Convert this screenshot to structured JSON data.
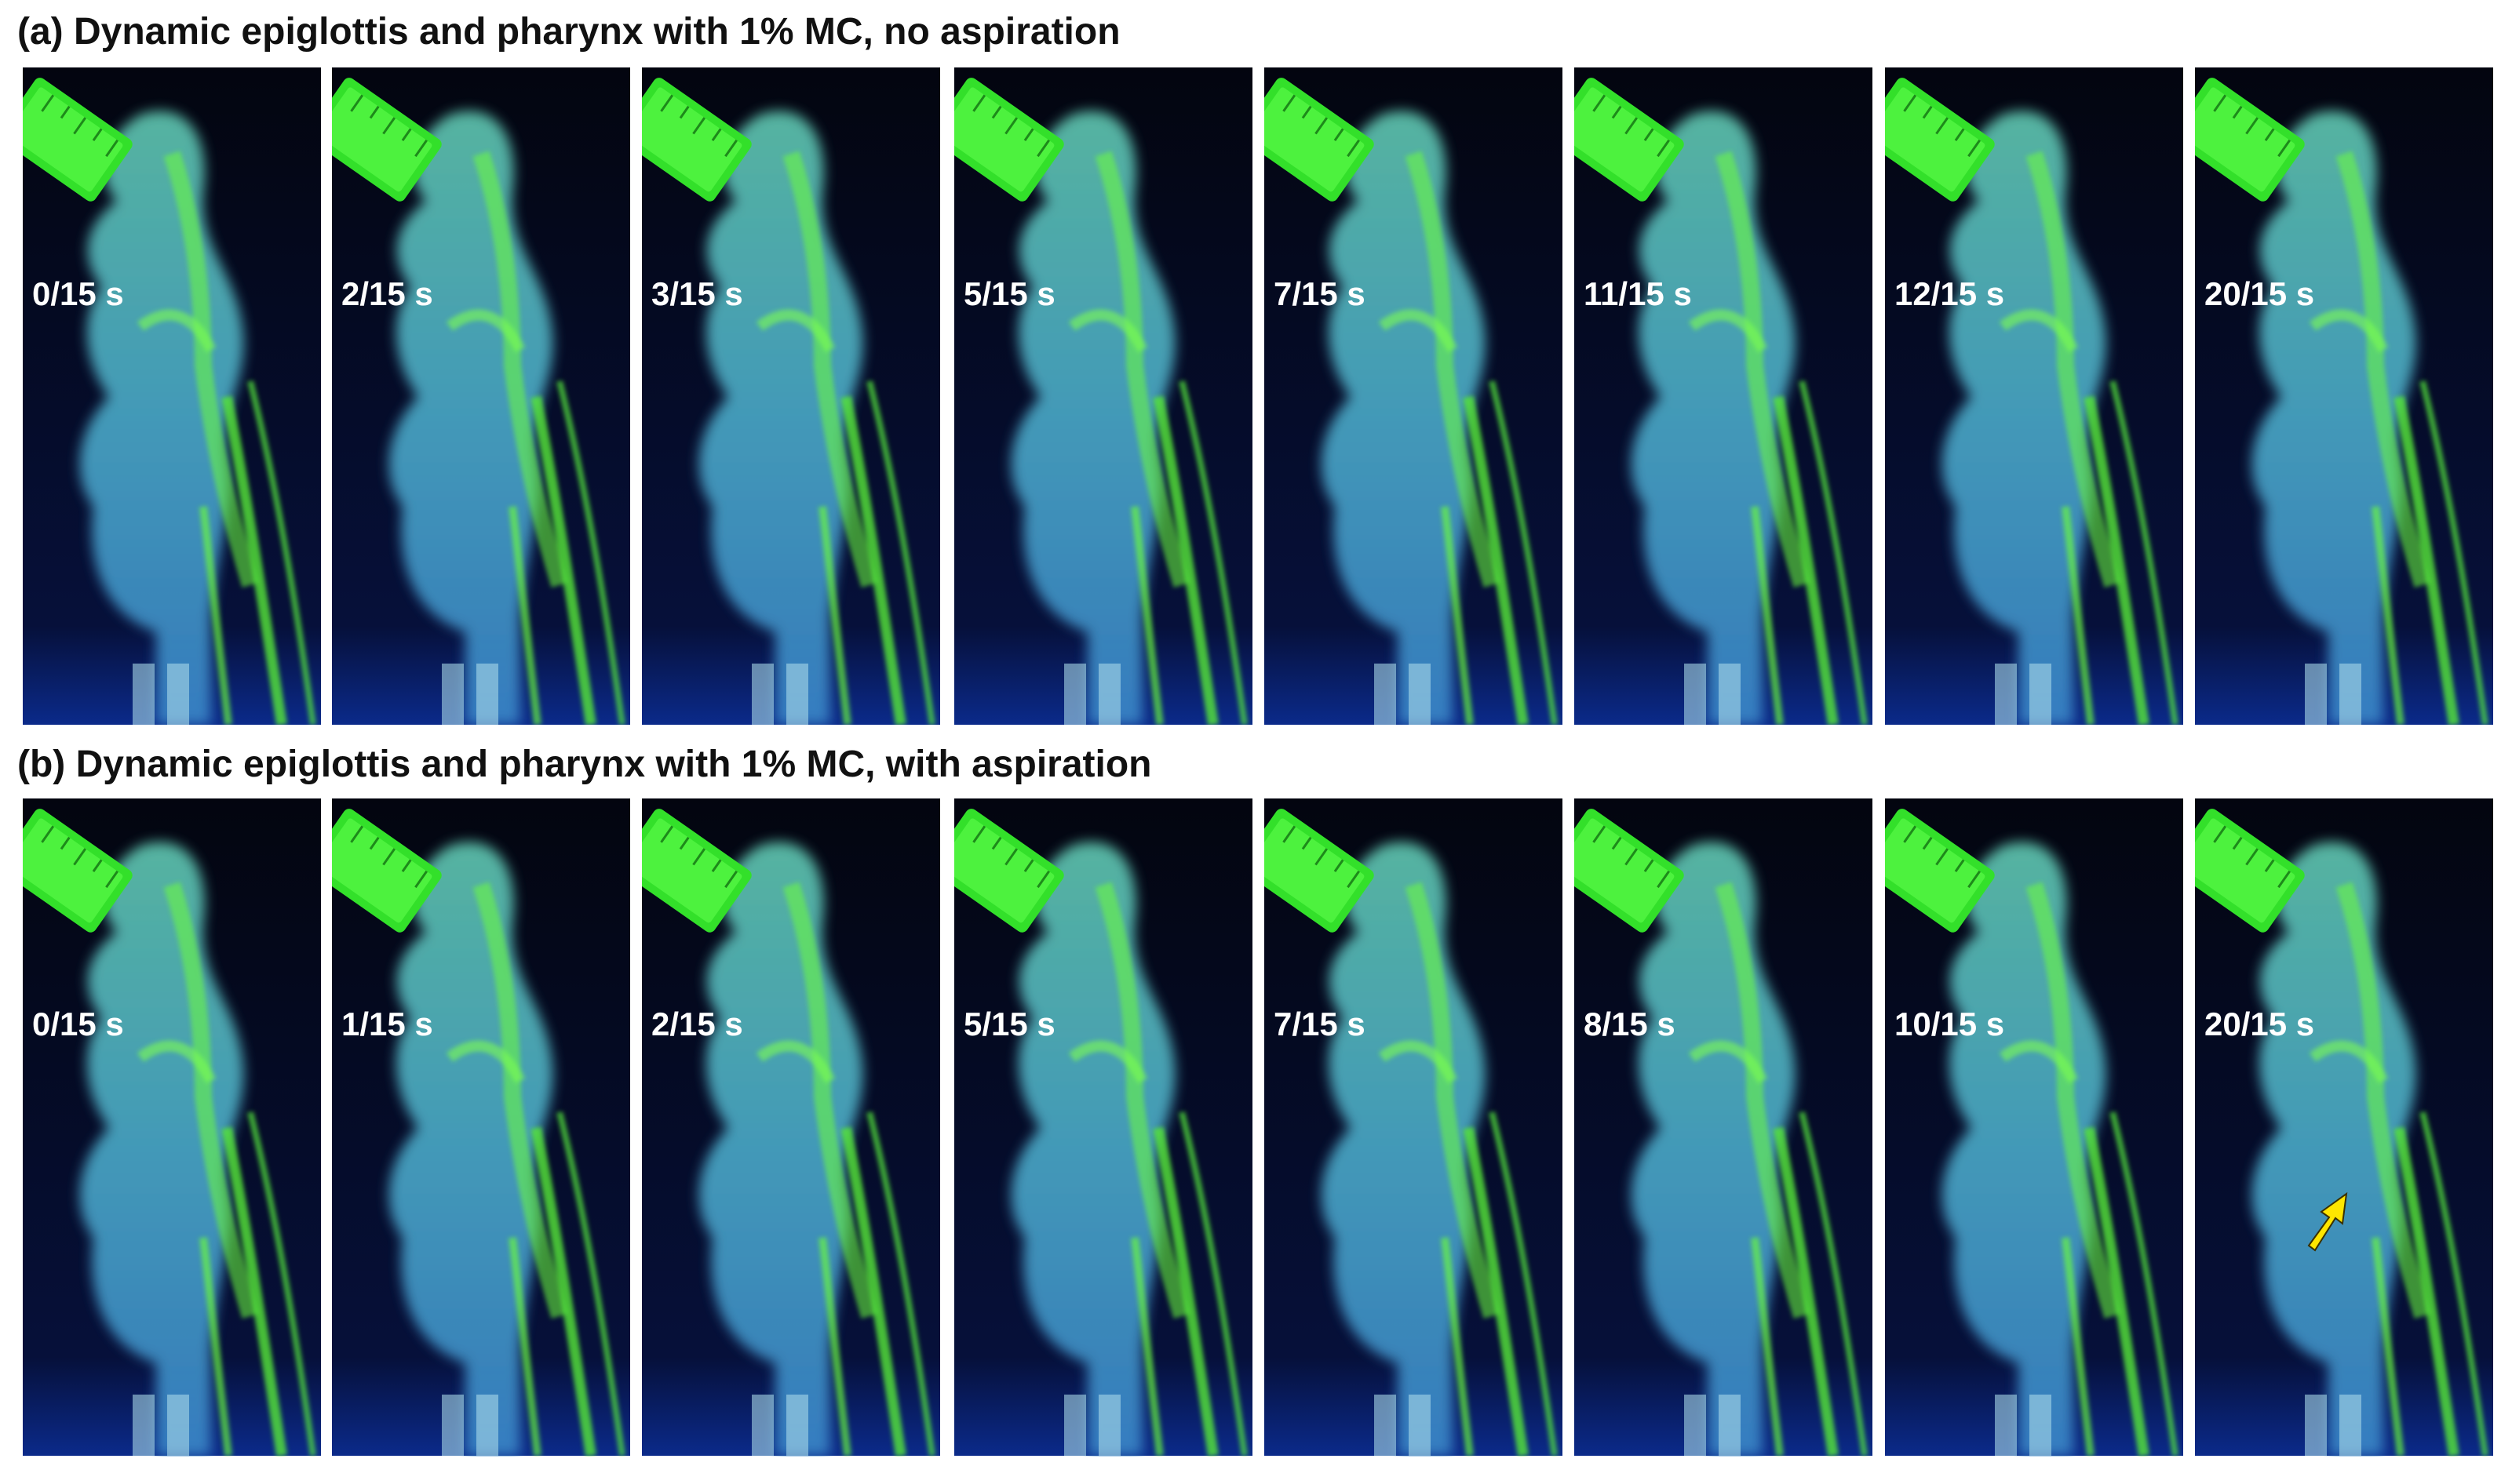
{
  "panels": [
    {
      "title": "(a) Dynamic epiglottis and pharynx with 1% MC, no aspiration",
      "frames": [
        "0/15 s",
        "2/15 s",
        "3/15 s",
        "5/15 s",
        "7/15 s",
        "11/15 s",
        "12/15 s",
        "20/15 s"
      ]
    },
    {
      "title": "(b) Dynamic epiglottis and pharynx with 1% MC, with aspiration",
      "frames": [
        "0/15 s",
        "1/15 s",
        "2/15 s",
        "5/15 s",
        "7/15 s",
        "8/15 s",
        "10/15 s",
        "20/15 s"
      ]
    }
  ]
}
